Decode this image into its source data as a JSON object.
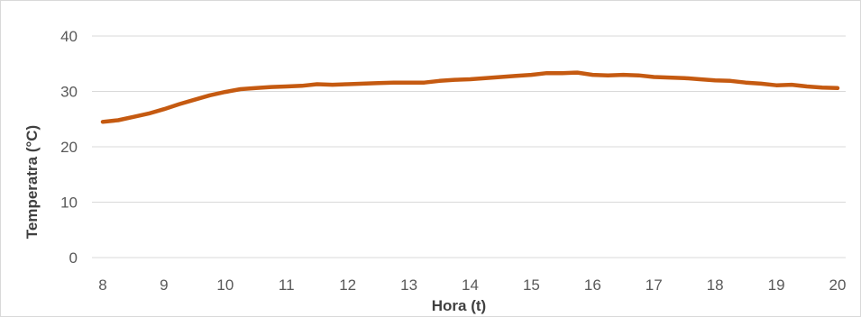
{
  "chart_data": {
    "type": "line",
    "title": "",
    "xlabel": "Hora (t)",
    "ylabel": "Temperatra (°C)",
    "xlim": [
      8,
      20
    ],
    "ylim": [
      0,
      40
    ],
    "x_ticks": [
      8,
      9,
      10,
      11,
      12,
      13,
      14,
      15,
      16,
      17,
      18,
      19,
      20
    ],
    "y_ticks": [
      0,
      10,
      20,
      30,
      40
    ],
    "grid": "horizontal",
    "legend": "none",
    "series": [
      {
        "color": "#c55a11",
        "x": [
          8,
          8.25,
          8.5,
          8.75,
          9,
          9.25,
          9.5,
          9.75,
          10,
          10.25,
          10.5,
          10.75,
          11,
          11.25,
          11.5,
          11.75,
          12,
          12.25,
          12.5,
          12.75,
          13,
          13.25,
          13.5,
          13.75,
          14,
          14.25,
          14.5,
          14.75,
          15,
          15.25,
          15.5,
          15.75,
          16,
          16.25,
          16.5,
          16.75,
          17,
          17.25,
          17.5,
          17.75,
          18,
          18.25,
          18.5,
          18.75,
          19,
          19.25,
          19.5,
          19.75,
          20
        ],
        "y": [
          24.5,
          24.8,
          25.4,
          26.0,
          26.8,
          27.7,
          28.5,
          29.3,
          29.9,
          30.4,
          30.6,
          30.8,
          30.9,
          31.0,
          31.3,
          31.2,
          31.3,
          31.4,
          31.5,
          31.6,
          31.6,
          31.6,
          31.9,
          32.1,
          32.2,
          32.4,
          32.6,
          32.8,
          33.0,
          33.3,
          33.3,
          33.4,
          33.0,
          32.9,
          33.0,
          32.9,
          32.6,
          32.5,
          32.4,
          32.2,
          32.0,
          31.9,
          31.6,
          31.4,
          31.1,
          31.2,
          30.9,
          30.7,
          30.6
        ]
      }
    ]
  }
}
